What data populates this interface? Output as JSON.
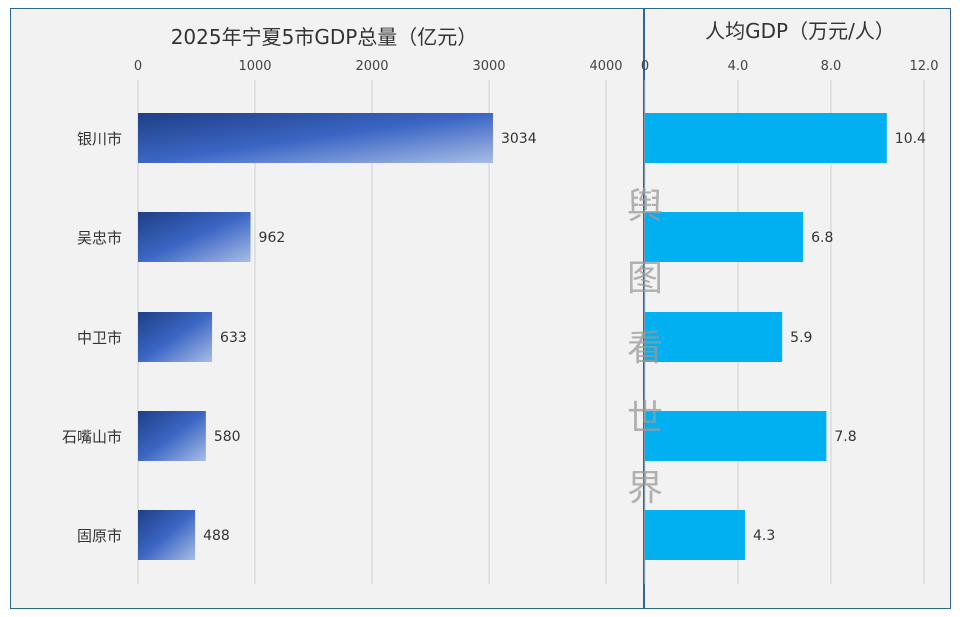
{
  "chart_data": [
    {
      "type": "bar",
      "orientation": "horizontal",
      "title": "2025年宁夏5市GDP总量（亿元）",
      "categories": [
        "银川市",
        "吴忠市",
        "中卫市",
        "石嘴山市",
        "固原市"
      ],
      "values": [
        3034,
        962,
        633,
        580,
        488
      ],
      "value_labels": [
        "3034",
        "962",
        "633",
        "580",
        "488"
      ],
      "xlim": [
        0,
        4000
      ],
      "ticks": [
        0,
        1000,
        2000,
        3000,
        4000
      ],
      "tick_labels": [
        "0",
        "1000",
        "2000",
        "3000",
        "4000"
      ],
      "grid": true,
      "axis_position": "top",
      "bar_color": "#2f55a8"
    },
    {
      "type": "bar",
      "orientation": "horizontal",
      "title": "人均GDP（万元/人）",
      "categories": [
        "银川市",
        "吴忠市",
        "中卫市",
        "石嘴山市",
        "固原市"
      ],
      "values": [
        10.4,
        6.8,
        5.9,
        7.8,
        4.3
      ],
      "value_labels": [
        "10.4",
        "6.8",
        "5.9",
        "7.8",
        "4.3"
      ],
      "xlim": [
        0,
        12
      ],
      "ticks": [
        0,
        4,
        8,
        12
      ],
      "tick_labels": [
        "0",
        "4.0",
        "8.0",
        "12.0"
      ],
      "grid": true,
      "axis_position": "top",
      "bar_color": "#00b0f0"
    }
  ],
  "watermark": {
    "chars": [
      "舆",
      "图",
      "看",
      "世",
      "界"
    ]
  }
}
